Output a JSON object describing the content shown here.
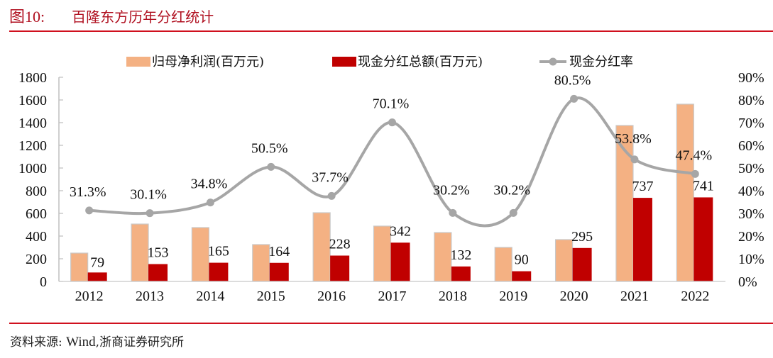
{
  "header": {
    "figure_label": "图10:",
    "title": "百隆东方历年分红统计"
  },
  "footer": {
    "source_prefix": "资料来源:",
    "source_latin": "Wind",
    "source_suffix": ",浙商证券研究所"
  },
  "colors": {
    "net_profit": "#f4b183",
    "dividend": "#c00000",
    "payout_line": "#a6a6a6",
    "accent": "#d0101e"
  },
  "chart_data": {
    "type": "bar+line",
    "title": "百隆东方历年分红统计",
    "categories": [
      "2012",
      "2013",
      "2014",
      "2015",
      "2016",
      "2017",
      "2018",
      "2019",
      "2020",
      "2021",
      "2022"
    ],
    "series": [
      {
        "name": "归母净利润(百万元)",
        "type": "bar",
        "axis": "left",
        "values": [
          250,
          506,
          475,
          325,
          606,
          488,
          431,
          300,
          369,
          1375,
          1563
        ]
      },
      {
        "name": "现金分红总额(百万元)",
        "type": "bar",
        "axis": "left",
        "values": [
          79,
          153,
          165,
          164,
          228,
          342,
          132,
          90,
          295,
          737,
          741
        ],
        "labels": [
          "79",
          "153",
          "165",
          "164",
          "228",
          "342",
          "132",
          "90",
          "295",
          "737",
          "741"
        ]
      },
      {
        "name": "现金分红率",
        "type": "line",
        "axis": "right",
        "smooth": true,
        "values": [
          31.3,
          30.1,
          34.8,
          50.5,
          37.7,
          70.1,
          30.2,
          30.2,
          80.5,
          53.8,
          47.4
        ],
        "labels": [
          "31.3%",
          "30.1%",
          "34.8%",
          "50.5%",
          "37.7%",
          "70.1%",
          "30.2%",
          "30.2%",
          "80.5%",
          "53.8%",
          "47.4%"
        ]
      }
    ],
    "left_axis": {
      "ylim": [
        0,
        1800
      ],
      "ticks": [
        "0",
        "200",
        "400",
        "600",
        "800",
        "1000",
        "1200",
        "1400",
        "1600",
        "1800"
      ]
    },
    "right_axis": {
      "ylim": [
        0,
        90
      ],
      "ticks": [
        "0%",
        "10%",
        "20%",
        "30%",
        "40%",
        "50%",
        "60%",
        "70%",
        "80%",
        "90%"
      ]
    },
    "legend": {
      "placement": "top",
      "items": [
        "归母净利润(百万元)",
        "现金分红总额(百万元)",
        "现金分红率"
      ]
    },
    "grid": false
  }
}
